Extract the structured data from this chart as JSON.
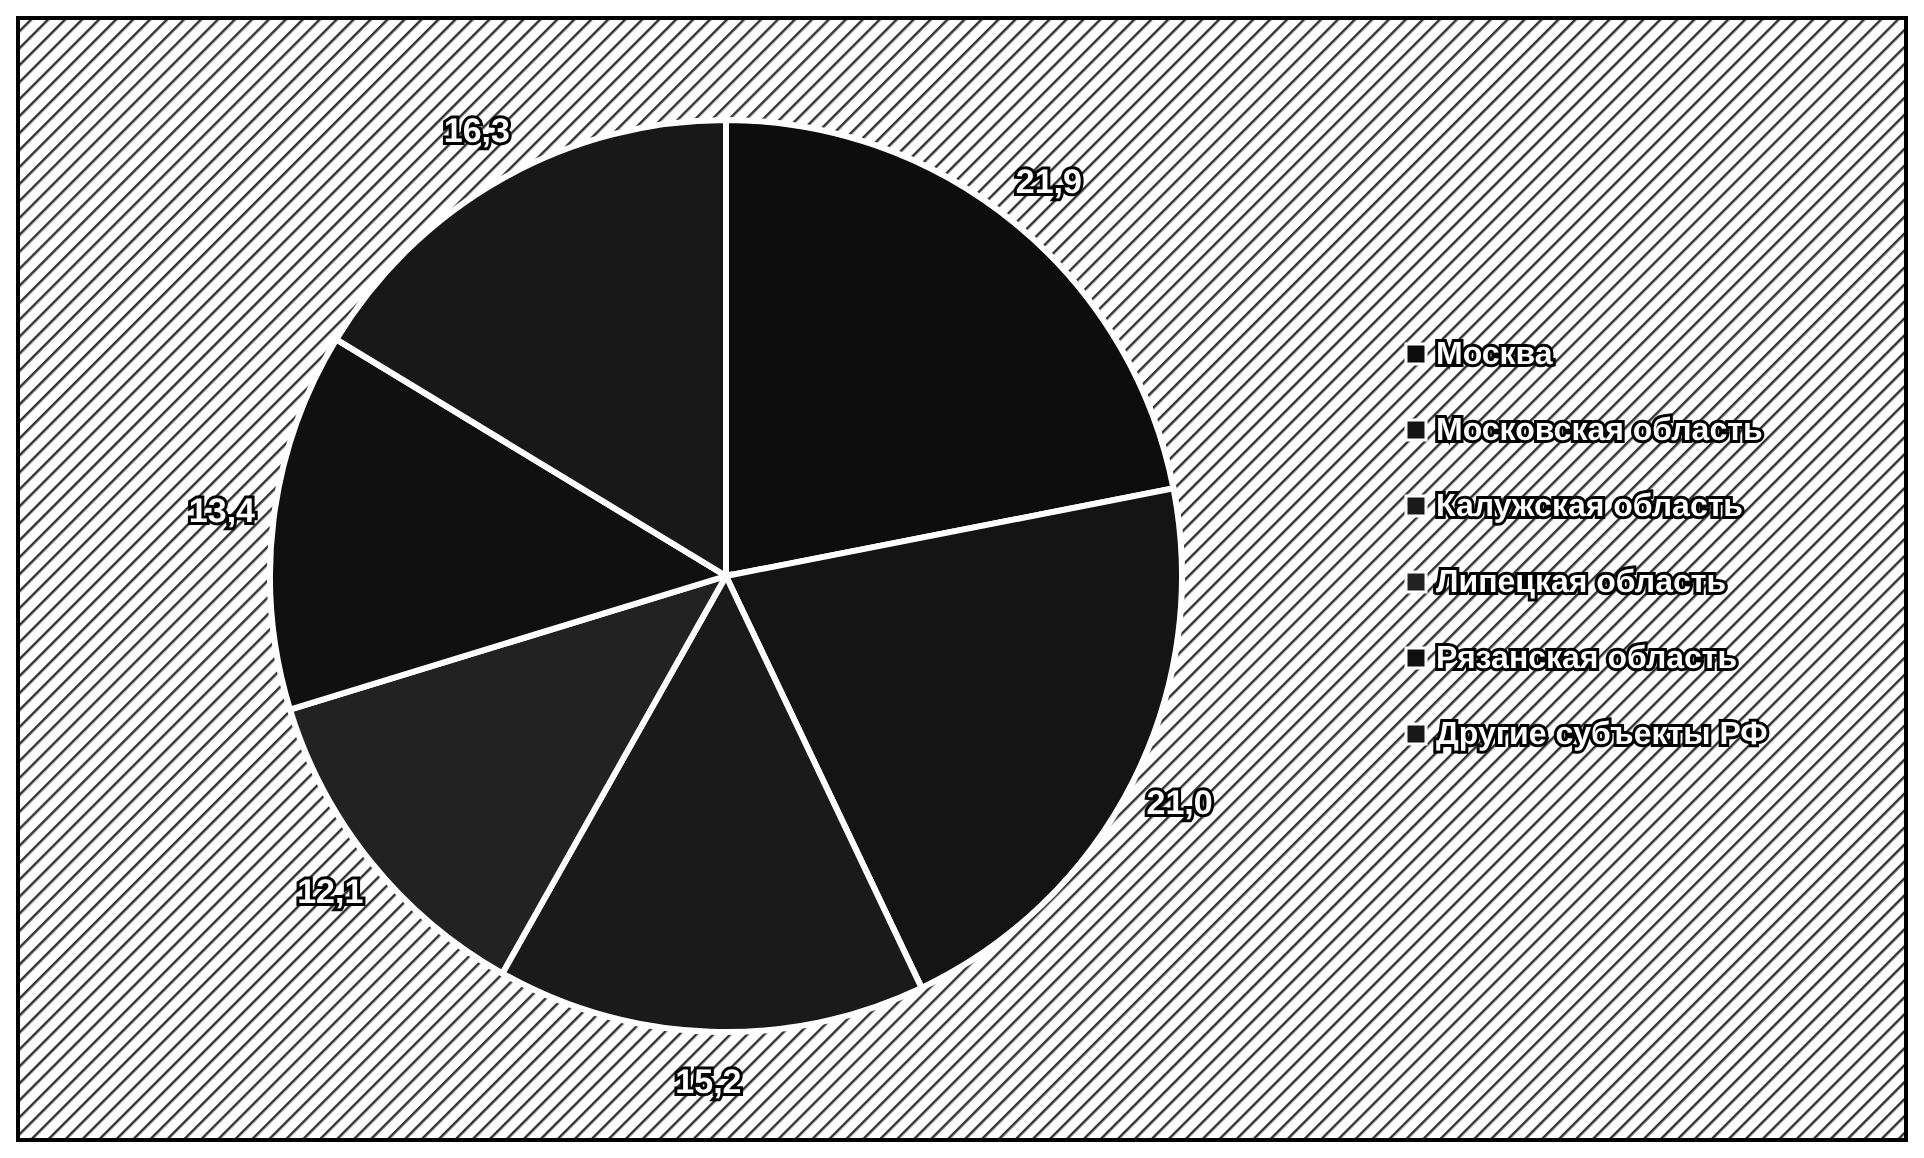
{
  "chart_data": {
    "type": "pie",
    "categories": [
      "Москва",
      "Московская область",
      "Калужская область",
      "Липецкая область",
      "Рязанская область",
      "Другие субъекты РФ"
    ],
    "values": [
      21.9,
      21.0,
      15.2,
      12.1,
      13.4,
      16.3
    ],
    "value_labels": [
      "21,9",
      "21,0",
      "15,2",
      "12,1",
      "13,4",
      "16,3"
    ],
    "colors": [
      "#0d0d0d",
      "#141414",
      "#1a1a1a",
      "#222222",
      "#101010",
      "#181818"
    ],
    "legend": "right"
  }
}
